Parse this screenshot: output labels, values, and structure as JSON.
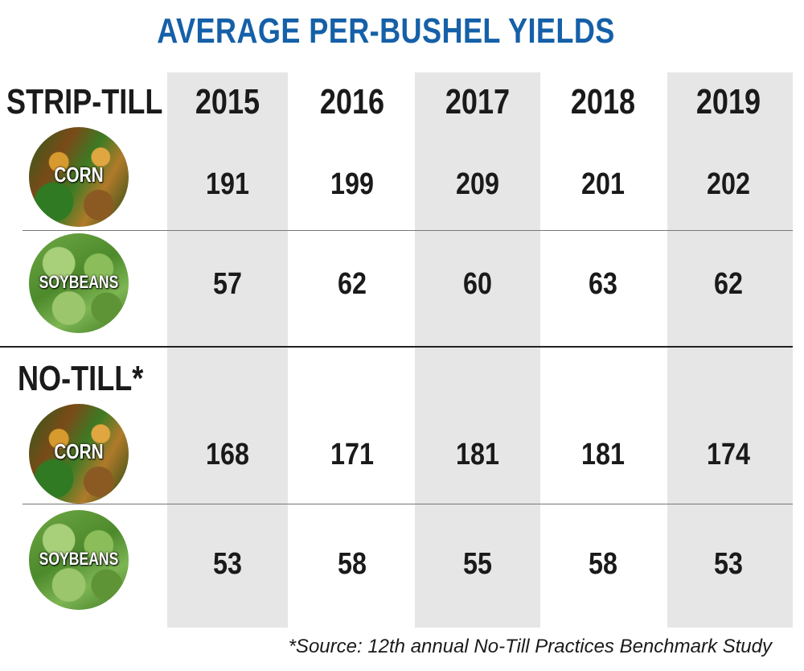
{
  "title": "AVERAGE PER-BUSHEL YIELDS",
  "years": [
    "2015",
    "2016",
    "2017",
    "2018",
    "2019"
  ],
  "sections": [
    {
      "label": "STRIP-TILL",
      "rows": [
        {
          "crop": "CORN",
          "values": [
            "191",
            "199",
            "209",
            "201",
            "202"
          ]
        },
        {
          "crop": "SOYBEANS",
          "values": [
            "57",
            "62",
            "60",
            "63",
            "62"
          ]
        }
      ]
    },
    {
      "label": "NO-TILL*",
      "rows": [
        {
          "crop": "CORN",
          "values": [
            "168",
            "171",
            "181",
            "181",
            "174"
          ]
        },
        {
          "crop": "SOYBEANS",
          "values": [
            "53",
            "58",
            "55",
            "58",
            "53"
          ]
        }
      ]
    }
  ],
  "source": "*Source: 12th annual No-Till Practices Benchmark Study",
  "colors": {
    "title": "#1560a8",
    "shade": "#e6e6e6"
  },
  "chart_data": {
    "type": "table",
    "title": "AVERAGE PER-BUSHEL YIELDS",
    "columns": [
      "2015",
      "2016",
      "2017",
      "2018",
      "2019"
    ],
    "groups": [
      {
        "name": "STRIP-TILL",
        "rows": [
          {
            "name": "CORN",
            "values": [
              191,
              199,
              209,
              201,
              202
            ]
          },
          {
            "name": "SOYBEANS",
            "values": [
              57,
              62,
              60,
              63,
              62
            ]
          }
        ]
      },
      {
        "name": "NO-TILL*",
        "rows": [
          {
            "name": "CORN",
            "values": [
              168,
              171,
              181,
              181,
              174
            ]
          },
          {
            "name": "SOYBEANS",
            "values": [
              53,
              58,
              55,
              58,
              53
            ]
          }
        ]
      }
    ]
  }
}
